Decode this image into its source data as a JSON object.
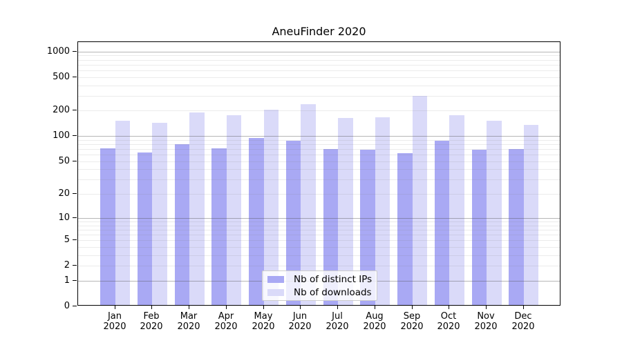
{
  "chart_data": {
    "type": "bar",
    "title": "AneuFinder 2020",
    "year": "2020",
    "categories": [
      "Jan",
      "Feb",
      "Mar",
      "Apr",
      "May",
      "Jun",
      "Jul",
      "Aug",
      "Sep",
      "Oct",
      "Nov",
      "Dec"
    ],
    "series": [
      {
        "name": "Nb of distinct IPs",
        "color": "#a9a9f4",
        "values": [
          70,
          63,
          78,
          70,
          93,
          86,
          69,
          67,
          62,
          86,
          68,
          69
        ]
      },
      {
        "name": "Nb of downloads",
        "color": "#dadaf9",
        "values": [
          150,
          140,
          187,
          174,
          203,
          235,
          160,
          165,
          296,
          175,
          148,
          133
        ]
      }
    ],
    "xlabel": "",
    "ylabel": "",
    "y_ticks": [
      0,
      1,
      2,
      5,
      10,
      20,
      50,
      100,
      200,
      500,
      1000
    ],
    "y_scale": "log1p",
    "ylim": [
      0,
      1280
    ],
    "grid": true,
    "legend_position": "bottom-center",
    "colors": {
      "ips_bar": "#a9a9f4",
      "downloads_bar": "#dadaf9",
      "axis": "#000000",
      "major_gridline": "#b5b5b5",
      "minor_gridline": "#e9e9e9",
      "background": "#ffffff"
    }
  }
}
